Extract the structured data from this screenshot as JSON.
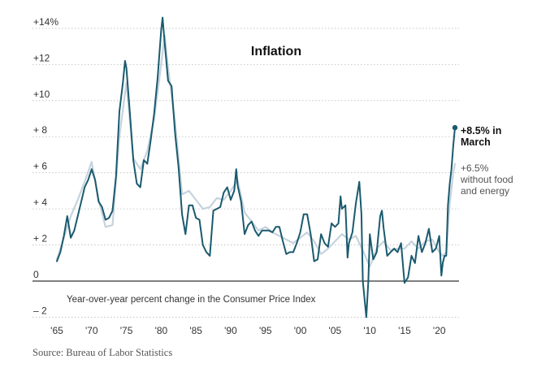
{
  "chart_data": {
    "type": "line",
    "title": "Inflation",
    "note": "Year-over-year percent change in the Consumer Price Index",
    "source": "Source: Bureau of Labor Statistics",
    "xlim": [
      1965,
      2022.25
    ],
    "ylim": [
      -2,
      14
    ],
    "y_ticks": [
      {
        "value": 14,
        "label": "+14%"
      },
      {
        "value": 12,
        "label": "+12"
      },
      {
        "value": 10,
        "label": "+10"
      },
      {
        "value": 8,
        "label": "+ 8"
      },
      {
        "value": 6,
        "label": "+ 6"
      },
      {
        "value": 4,
        "label": "+ 4"
      },
      {
        "value": 2,
        "label": "+ 2"
      },
      {
        "value": 0,
        "label": "0"
      },
      {
        "value": -2,
        "label": "– 2"
      }
    ],
    "x_ticks": [
      {
        "value": 1965,
        "label": "'65"
      },
      {
        "value": 1970,
        "label": "'70"
      },
      {
        "value": 1975,
        "label": "'75"
      },
      {
        "value": 1980,
        "label": "'80"
      },
      {
        "value": 1985,
        "label": "'85"
      },
      {
        "value": 1990,
        "label": "'90"
      },
      {
        "value": 1995,
        "label": "'95"
      },
      {
        "value": 2000,
        "label": "'00"
      },
      {
        "value": 2005,
        "label": "'05"
      },
      {
        "value": 2010,
        "label": "'10"
      },
      {
        "value": 2015,
        "label": "'15"
      },
      {
        "value": 2020,
        "label": "'20"
      }
    ],
    "grid": true,
    "colors": {
      "headline": "#1a5a6e",
      "core": "#c5d3de",
      "grid": "#bbbbbb",
      "zero": "#333333"
    },
    "series": [
      {
        "name": "headline",
        "points": [
          [
            1965,
            1.1
          ],
          [
            1965.5,
            1.6
          ],
          [
            1966,
            2.5
          ],
          [
            1966.5,
            3.6
          ],
          [
            1967,
            2.4
          ],
          [
            1967.5,
            2.8
          ],
          [
            1968,
            3.6
          ],
          [
            1968.5,
            4.4
          ],
          [
            1969,
            5.2
          ],
          [
            1969.5,
            5.6
          ],
          [
            1970,
            6.2
          ],
          [
            1970.5,
            5.6
          ],
          [
            1971,
            4.4
          ],
          [
            1971.5,
            4.1
          ],
          [
            1972,
            3.4
          ],
          [
            1972.5,
            3.5
          ],
          [
            1973,
            3.9
          ],
          [
            1973.5,
            5.8
          ],
          [
            1974,
            9.4
          ],
          [
            1974.5,
            11.0
          ],
          [
            1974.8,
            12.2
          ],
          [
            1975,
            11.8
          ],
          [
            1975.5,
            9.3
          ],
          [
            1976,
            6.7
          ],
          [
            1976.5,
            5.4
          ],
          [
            1977,
            5.2
          ],
          [
            1977.5,
            6.7
          ],
          [
            1978,
            6.5
          ],
          [
            1978.5,
            7.8
          ],
          [
            1979,
            9.3
          ],
          [
            1979.5,
            11.3
          ],
          [
            1980,
            13.9
          ],
          [
            1980.2,
            14.6
          ],
          [
            1980.5,
            13.2
          ],
          [
            1981,
            11.1
          ],
          [
            1981.5,
            10.8
          ],
          [
            1982,
            8.2
          ],
          [
            1982.5,
            6.3
          ],
          [
            1983,
            3.7
          ],
          [
            1983.5,
            2.6
          ],
          [
            1984,
            4.2
          ],
          [
            1984.5,
            4.2
          ],
          [
            1985,
            3.5
          ],
          [
            1985.5,
            3.4
          ],
          [
            1986,
            2.0
          ],
          [
            1986.5,
            1.6
          ],
          [
            1987,
            1.4
          ],
          [
            1987.5,
            3.9
          ],
          [
            1988,
            4.0
          ],
          [
            1988.5,
            4.1
          ],
          [
            1989,
            4.9
          ],
          [
            1989.5,
            5.2
          ],
          [
            1990,
            4.5
          ],
          [
            1990.5,
            5.0
          ],
          [
            1990.8,
            6.2
          ],
          [
            1991,
            5.3
          ],
          [
            1991.5,
            4.4
          ],
          [
            1992,
            2.6
          ],
          [
            1992.5,
            3.1
          ],
          [
            1993,
            3.3
          ],
          [
            1993.5,
            2.8
          ],
          [
            1994,
            2.5
          ],
          [
            1994.5,
            2.8
          ],
          [
            1995,
            2.8
          ],
          [
            1995.5,
            2.8
          ],
          [
            1996,
            2.7
          ],
          [
            1996.5,
            3.0
          ],
          [
            1997,
            3.0
          ],
          [
            1997.5,
            2.2
          ],
          [
            1998,
            1.5
          ],
          [
            1998.5,
            1.6
          ],
          [
            1999,
            1.6
          ],
          [
            1999.5,
            2.1
          ],
          [
            2000,
            2.7
          ],
          [
            2000.5,
            3.7
          ],
          [
            2001,
            3.7
          ],
          [
            2001.5,
            2.6
          ],
          [
            2002,
            1.1
          ],
          [
            2002.5,
            1.2
          ],
          [
            2003,
            2.6
          ],
          [
            2003.5,
            2.1
          ],
          [
            2004,
            1.9
          ],
          [
            2004.5,
            3.2
          ],
          [
            2005,
            3.0
          ],
          [
            2005.5,
            3.2
          ],
          [
            2005.8,
            4.7
          ],
          [
            2006,
            4.0
          ],
          [
            2006.5,
            4.2
          ],
          [
            2006.8,
            1.3
          ],
          [
            2007,
            2.1
          ],
          [
            2007.5,
            2.7
          ],
          [
            2008,
            4.3
          ],
          [
            2008.5,
            5.5
          ],
          [
            2008.8,
            3.7
          ],
          [
            2009,
            0.0
          ],
          [
            2009.5,
            -2.0
          ],
          [
            2009.8,
            0.0
          ],
          [
            2010,
            2.6
          ],
          [
            2010.5,
            1.2
          ],
          [
            2011,
            1.6
          ],
          [
            2011.5,
            3.6
          ],
          [
            2011.75,
            3.9
          ],
          [
            2012,
            2.9
          ],
          [
            2012.5,
            1.4
          ],
          [
            2013,
            1.6
          ],
          [
            2013.5,
            1.8
          ],
          [
            2014,
            1.6
          ],
          [
            2014.5,
            2.1
          ],
          [
            2015,
            -0.1
          ],
          [
            2015.5,
            0.2
          ],
          [
            2016,
            1.4
          ],
          [
            2016.5,
            1.0
          ],
          [
            2017,
            2.5
          ],
          [
            2017.5,
            1.6
          ],
          [
            2018,
            2.1
          ],
          [
            2018.5,
            2.9
          ],
          [
            2019,
            1.6
          ],
          [
            2019.5,
            1.8
          ],
          [
            2020,
            2.5
          ],
          [
            2020.3,
            0.3
          ],
          [
            2020.5,
            1.0
          ],
          [
            2020.75,
            1.4
          ],
          [
            2021,
            1.4
          ],
          [
            2021.25,
            4.2
          ],
          [
            2021.5,
            5.4
          ],
          [
            2021.75,
            6.2
          ],
          [
            2022,
            7.5
          ],
          [
            2022.25,
            8.5
          ]
        ]
      },
      {
        "name": "core",
        "points": [
          [
            1965,
            1.2
          ],
          [
            1966,
            2.4
          ],
          [
            1967,
            3.6
          ],
          [
            1968,
            4.5
          ],
          [
            1969,
            5.5
          ],
          [
            1970,
            6.6
          ],
          [
            1971,
            4.5
          ],
          [
            1972,
            3.0
          ],
          [
            1973,
            3.1
          ],
          [
            1974,
            8.0
          ],
          [
            1975,
            11.0
          ],
          [
            1976,
            6.8
          ],
          [
            1977,
            6.2
          ],
          [
            1978,
            7.2
          ],
          [
            1979,
            9.0
          ],
          [
            1980,
            12.0
          ],
          [
            1980.5,
            13.6
          ],
          [
            1981,
            11.8
          ],
          [
            1982,
            8.8
          ],
          [
            1983,
            4.8
          ],
          [
            1984,
            5.0
          ],
          [
            1985,
            4.5
          ],
          [
            1986,
            4.0
          ],
          [
            1987,
            4.1
          ],
          [
            1988,
            4.6
          ],
          [
            1989,
            4.5
          ],
          [
            1990,
            5.0
          ],
          [
            1991,
            5.6
          ],
          [
            1992,
            3.8
          ],
          [
            1993,
            3.3
          ],
          [
            1994,
            2.8
          ],
          [
            1995,
            3.0
          ],
          [
            1996,
            2.7
          ],
          [
            1997,
            2.5
          ],
          [
            1998,
            2.3
          ],
          [
            1999,
            2.1
          ],
          [
            2000,
            2.4
          ],
          [
            2001,
            2.7
          ],
          [
            2002,
            2.2
          ],
          [
            2003,
            1.5
          ],
          [
            2004,
            1.8
          ],
          [
            2005,
            2.2
          ],
          [
            2006,
            2.6
          ],
          [
            2007,
            2.3
          ],
          [
            2008,
            2.5
          ],
          [
            2009,
            1.7
          ],
          [
            2010,
            0.8
          ],
          [
            2011,
            1.8
          ],
          [
            2012,
            2.2
          ],
          [
            2013,
            1.7
          ],
          [
            2014,
            1.8
          ],
          [
            2015,
            1.8
          ],
          [
            2016,
            2.2
          ],
          [
            2017,
            1.8
          ],
          [
            2018,
            2.2
          ],
          [
            2019,
            2.3
          ],
          [
            2020,
            1.6
          ],
          [
            2020.5,
            1.4
          ],
          [
            2021,
            1.6
          ],
          [
            2021.5,
            4.3
          ],
          [
            2022,
            6.0
          ],
          [
            2022.25,
            6.5
          ]
        ]
      }
    ],
    "annotations": {
      "headline_lines": [
        "+8.5% in",
        "March"
      ],
      "core_lines": [
        "+6.5%",
        "without food",
        "and energy"
      ]
    }
  }
}
